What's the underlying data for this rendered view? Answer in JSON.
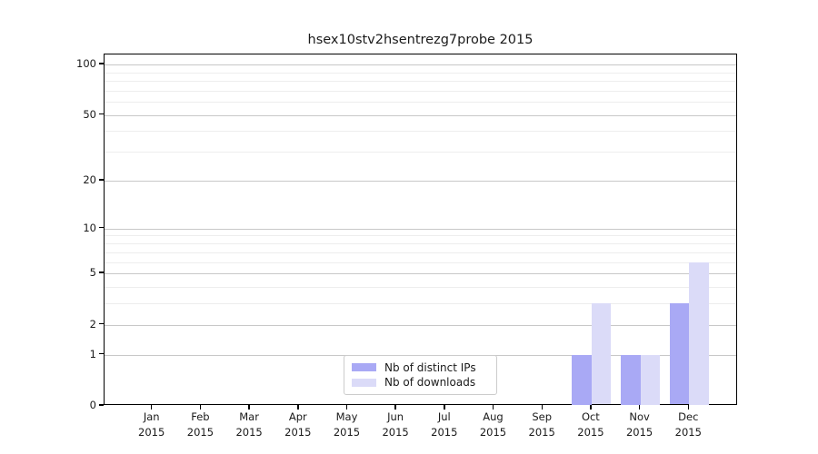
{
  "title": "hsex10stv2hsentrezg7probe 2015",
  "legend": {
    "items": [
      {
        "label": "Nb of distinct IPs",
        "color": "#a9a9f5"
      },
      {
        "label": "Nb of downloads",
        "color": "#dbdbf8"
      }
    ]
  },
  "axes": {
    "y_ticks": [
      {
        "value": 0,
        "label": "0"
      },
      {
        "value": 1,
        "label": "1"
      },
      {
        "value": 2,
        "label": "2"
      },
      {
        "value": 5,
        "label": "5"
      },
      {
        "value": 10,
        "label": "10"
      },
      {
        "value": 20,
        "label": "20"
      },
      {
        "value": 50,
        "label": "50"
      },
      {
        "value": 100,
        "label": "100"
      }
    ],
    "minor_gridline_values": [
      3,
      4,
      6,
      7,
      8,
      9,
      30,
      40,
      60,
      70,
      80,
      90
    ],
    "x_ticks": [
      {
        "line1": "Jan",
        "line2": "2015"
      },
      {
        "line1": "Feb",
        "line2": "2015"
      },
      {
        "line1": "Mar",
        "line2": "2015"
      },
      {
        "line1": "Apr",
        "line2": "2015"
      },
      {
        "line1": "May",
        "line2": "2015"
      },
      {
        "line1": "Jun",
        "line2": "2015"
      },
      {
        "line1": "Jul",
        "line2": "2015"
      },
      {
        "line1": "Aug",
        "line2": "2015"
      },
      {
        "line1": "Sep",
        "line2": "2015"
      },
      {
        "line1": "Oct",
        "line2": "2015"
      },
      {
        "line1": "Nov",
        "line2": "2015"
      },
      {
        "line1": "Dec",
        "line2": "2015"
      }
    ]
  },
  "chart_data": {
    "type": "bar",
    "title": "hsex10stv2hsentrezg7probe 2015",
    "categories": [
      "Jan 2015",
      "Feb 2015",
      "Mar 2015",
      "Apr 2015",
      "May 2015",
      "Jun 2015",
      "Jul 2015",
      "Aug 2015",
      "Sep 2015",
      "Oct 2015",
      "Nov 2015",
      "Dec 2015"
    ],
    "series": [
      {
        "name": "Nb of distinct IPs",
        "color": "#a9a9f5",
        "values": [
          0,
          0,
          0,
          0,
          0,
          0,
          0,
          0,
          0,
          1,
          1,
          3
        ]
      },
      {
        "name": "Nb of downloads",
        "color": "#dbdbf8",
        "values": [
          0,
          0,
          0,
          0,
          0,
          0,
          0,
          0,
          0,
          3,
          1,
          6
        ]
      }
    ],
    "yscale": "log10(1+x)",
    "ytick_values": [
      0,
      1,
      2,
      5,
      10,
      20,
      50,
      100
    ],
    "ylim": [
      0,
      115
    ],
    "grid": "horizontal",
    "legend_position": "lower-center-inside",
    "xlabel": "",
    "ylabel": ""
  }
}
